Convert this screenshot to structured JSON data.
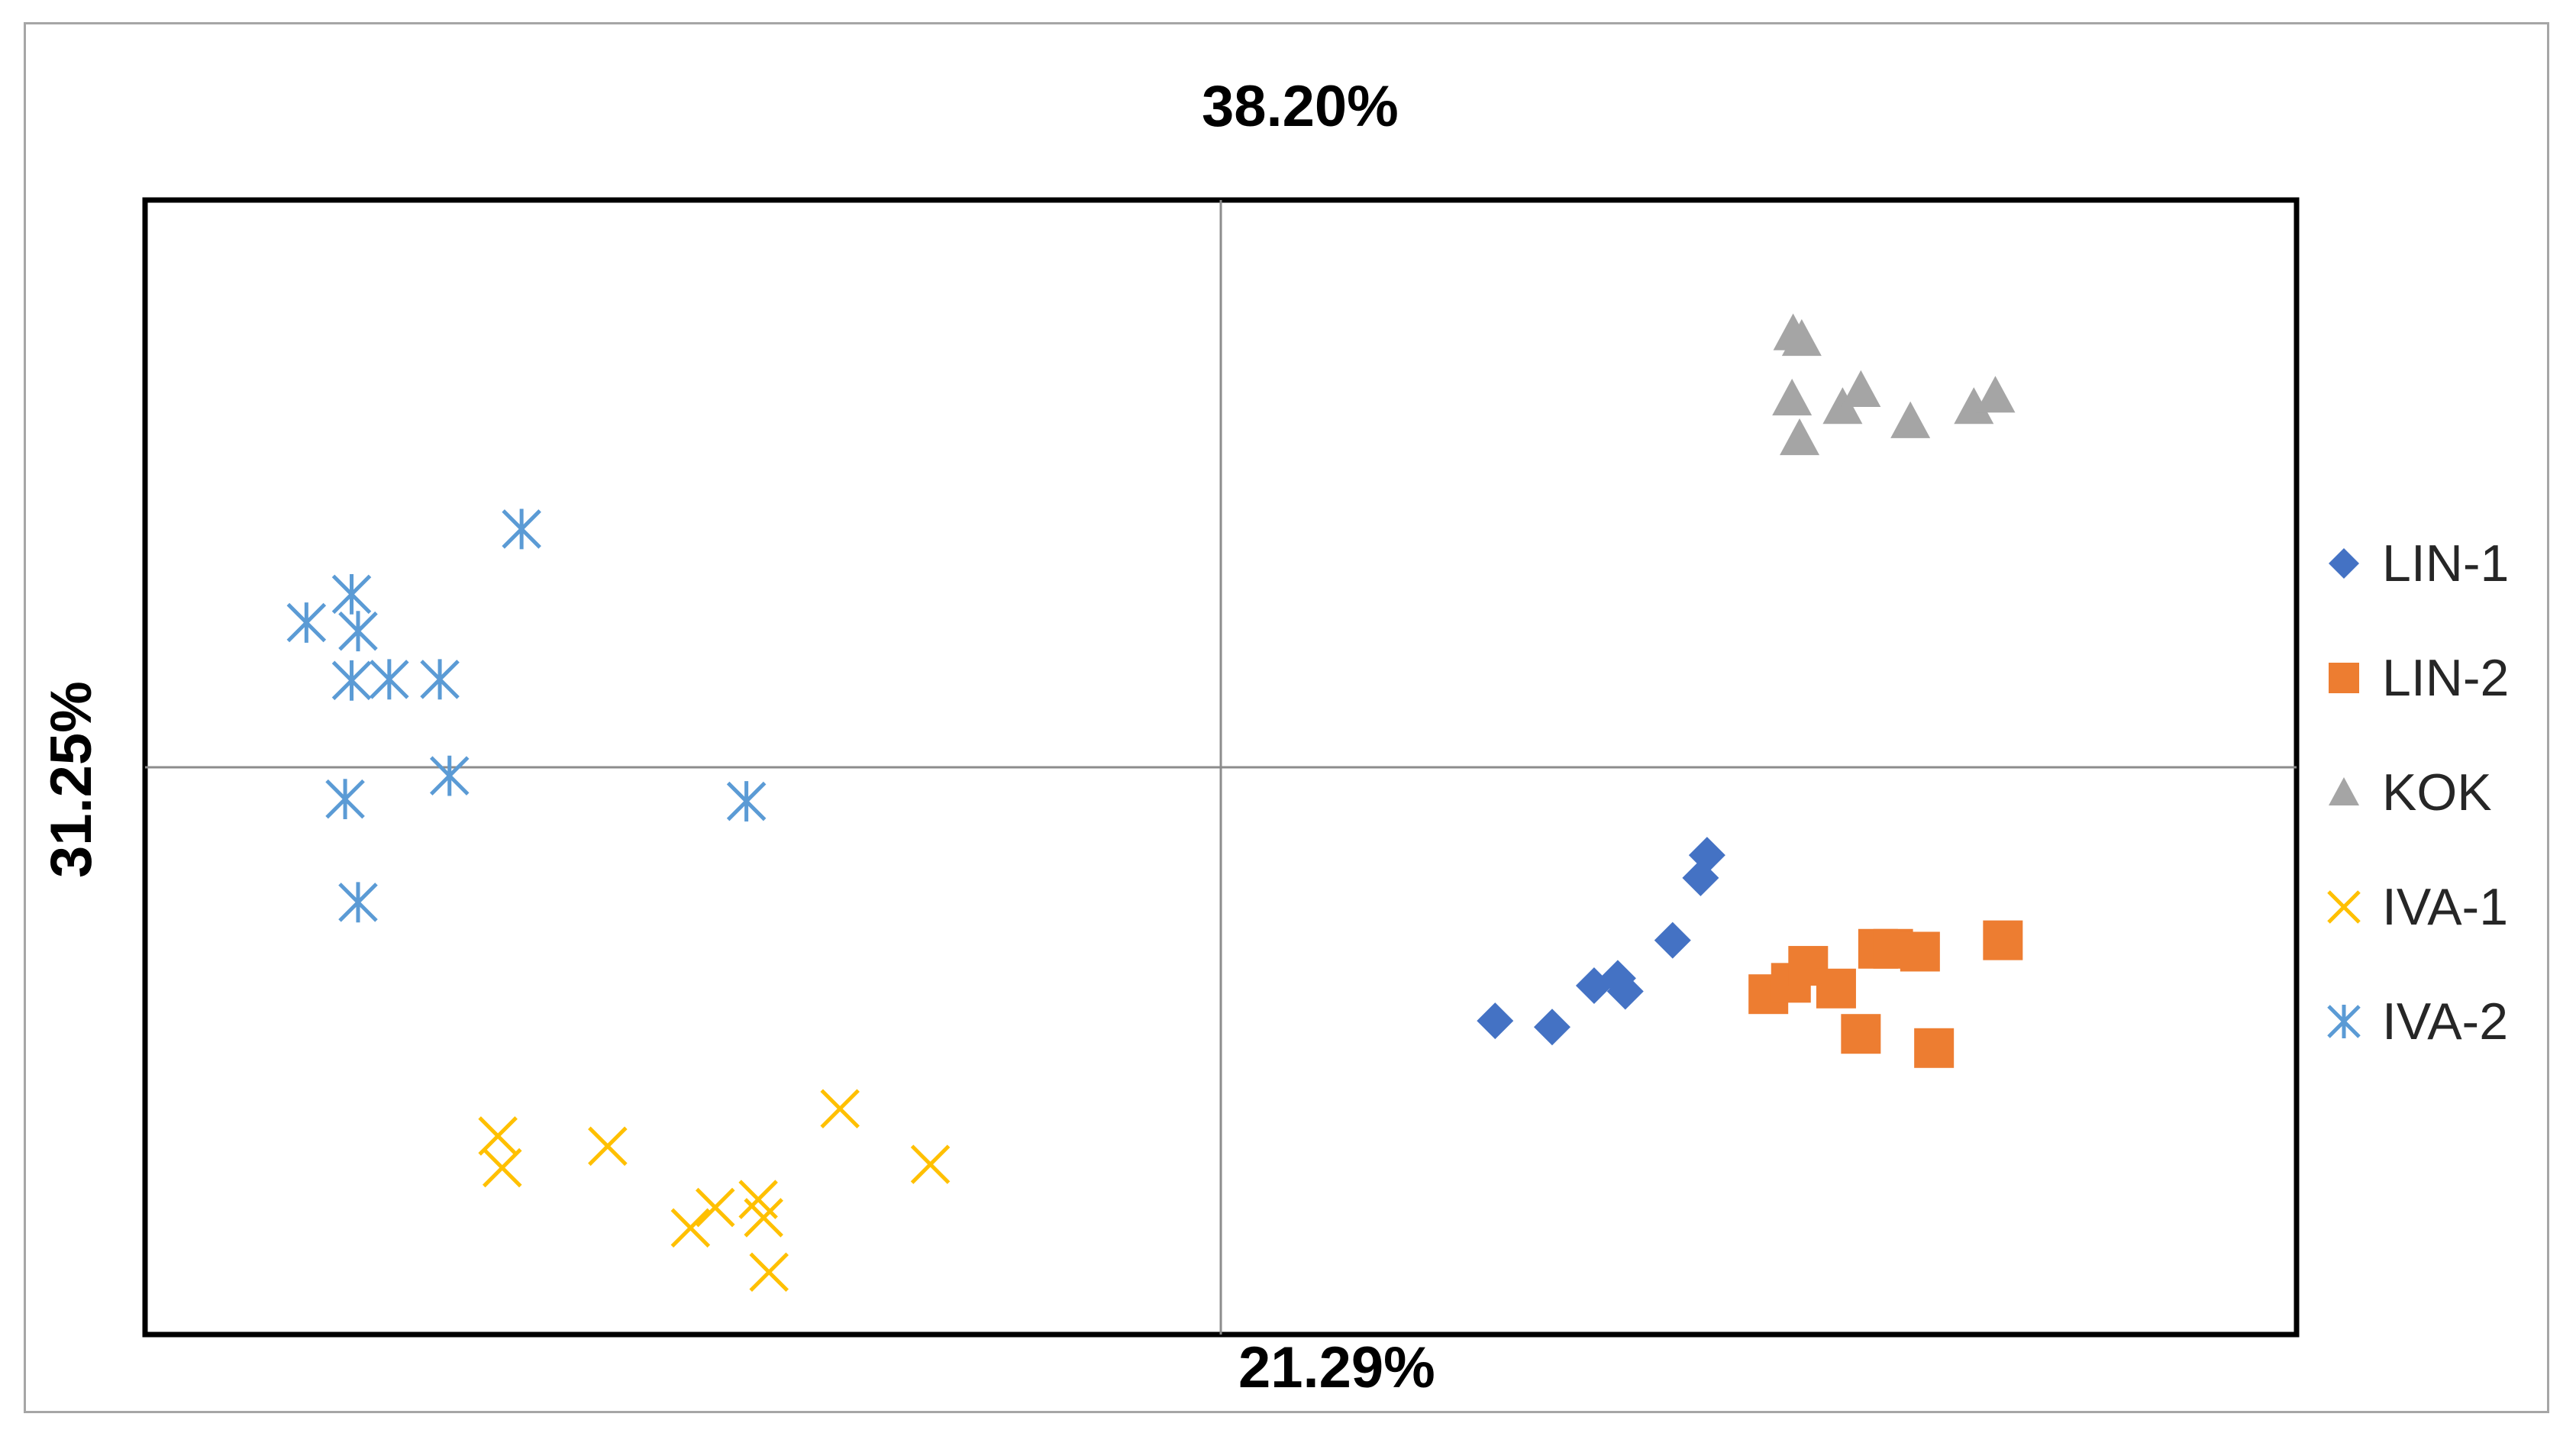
{
  "chart_data": {
    "type": "scatter",
    "title": "",
    "top_label": "38.20%",
    "bottom_label": "21.29%",
    "left_label": "31.25%",
    "xlim": [
      -1.0,
      1.0
    ],
    "ylim": [
      -1.0,
      1.0
    ],
    "grid": false,
    "legend_position": "right",
    "series": [
      {
        "name": "LIN-1",
        "marker": "diamond",
        "color": "#4472c4",
        "points": [
          [
            0.255,
            -0.447
          ],
          [
            0.308,
            -0.458
          ],
          [
            0.347,
            -0.385
          ],
          [
            0.369,
            -0.372
          ],
          [
            0.376,
            -0.395
          ],
          [
            0.42,
            -0.305
          ],
          [
            0.446,
            -0.195
          ],
          [
            0.452,
            -0.155
          ]
        ]
      },
      {
        "name": "LIN-2",
        "marker": "square",
        "color": "#ed7d31",
        "points": [
          [
            0.509,
            -0.4
          ],
          [
            0.53,
            -0.38
          ],
          [
            0.546,
            -0.35
          ],
          [
            0.572,
            -0.39
          ],
          [
            0.595,
            -0.47
          ],
          [
            0.611,
            -0.32
          ],
          [
            0.625,
            -0.32
          ],
          [
            0.65,
            -0.325
          ],
          [
            0.663,
            -0.495
          ],
          [
            0.727,
            -0.305
          ]
        ]
      },
      {
        "name": "KOK",
        "marker": "triangle",
        "color": "#a5a5a5",
        "points": [
          [
            0.532,
            0.765
          ],
          [
            0.54,
            0.755
          ],
          [
            0.531,
            0.65
          ],
          [
            0.538,
            0.58
          ],
          [
            0.578,
            0.635
          ],
          [
            0.595,
            0.665
          ],
          [
            0.641,
            0.61
          ],
          [
            0.7,
            0.635
          ],
          [
            0.72,
            0.655
          ]
        ]
      },
      {
        "name": "IVA-1",
        "marker": "x",
        "color": "#ffc000",
        "points": [
          [
            -0.672,
            -0.65
          ],
          [
            -0.668,
            -0.706
          ],
          [
            -0.57,
            -0.668
          ],
          [
            -0.493,
            -0.812
          ],
          [
            -0.47,
            -0.776
          ],
          [
            -0.43,
            -0.762
          ],
          [
            -0.425,
            -0.794
          ],
          [
            -0.42,
            -0.89
          ],
          [
            -0.354,
            -0.602
          ],
          [
            -0.27,
            -0.7
          ]
        ]
      },
      {
        "name": "IVA-2",
        "marker": "asterisk",
        "color": "#5b9bd5",
        "points": [
          [
            -0.85,
            0.255
          ],
          [
            -0.808,
            0.305
          ],
          [
            -0.802,
            0.24
          ],
          [
            -0.808,
            0.153
          ],
          [
            -0.773,
            0.155
          ],
          [
            -0.726,
            0.155
          ],
          [
            -0.717,
            -0.015
          ],
          [
            -0.814,
            -0.056
          ],
          [
            -0.802,
            -0.238
          ],
          [
            -0.65,
            0.42
          ],
          [
            -0.441,
            -0.06
          ]
        ]
      }
    ]
  }
}
